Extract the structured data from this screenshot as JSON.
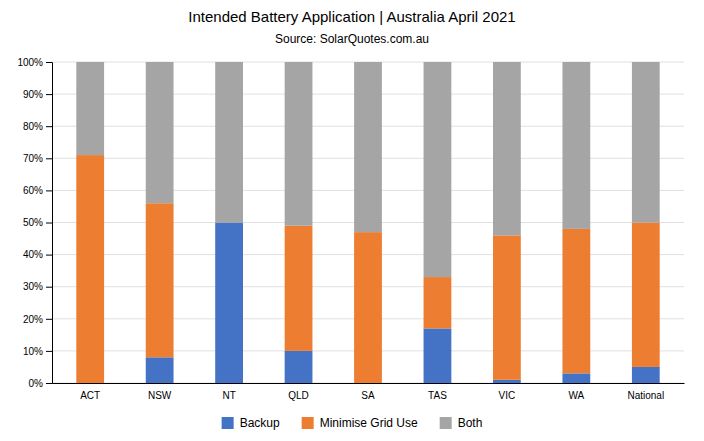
{
  "chart_data": {
    "type": "bar",
    "title": "Intended Battery Application | Australia April 2021",
    "subtitle": "Source: SolarQuotes.com.au",
    "categories": [
      "ACT",
      "NSW",
      "NT",
      "QLD",
      "SA",
      "TAS",
      "VIC",
      "WA",
      "National"
    ],
    "series": [
      {
        "name": "Backup",
        "color": "#4472C4",
        "values": [
          0,
          8,
          50,
          10,
          0,
          17,
          1,
          3,
          5
        ]
      },
      {
        "name": "Minimise Grid Use",
        "color": "#ED7D31",
        "values": [
          71,
          48,
          0,
          39,
          47,
          16,
          45,
          45,
          45
        ]
      },
      {
        "name": "Both",
        "color": "#A5A5A5",
        "values": [
          29,
          44,
          50,
          51,
          53,
          67,
          54,
          52,
          50
        ]
      }
    ],
    "stacked": true,
    "ylim": [
      0,
      100
    ],
    "yticks": [
      {
        "value": 0,
        "label": "0%"
      },
      {
        "value": 10,
        "label": "10%"
      },
      {
        "value": 20,
        "label": "20%"
      },
      {
        "value": 30,
        "label": "30%"
      },
      {
        "value": 40,
        "label": "40%"
      },
      {
        "value": 50,
        "label": "50%"
      },
      {
        "value": 60,
        "label": "60%"
      },
      {
        "value": 70,
        "label": "70%"
      },
      {
        "value": 80,
        "label": "80%"
      },
      {
        "value": 90,
        "label": "90%"
      },
      {
        "value": 100,
        "label": "100%"
      }
    ],
    "grid": true,
    "legend": "bottom"
  }
}
